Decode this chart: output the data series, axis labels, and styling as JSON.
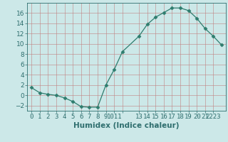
{
  "x": [
    0,
    1,
    2,
    3,
    4,
    5,
    6,
    7,
    8,
    9,
    10,
    11,
    13,
    14,
    15,
    16,
    17,
    18,
    19,
    20,
    21,
    22,
    23
  ],
  "y": [
    1.5,
    0.5,
    0.2,
    0.0,
    -0.5,
    -1.2,
    -2.2,
    -2.3,
    -2.3,
    2.0,
    5.0,
    8.5,
    11.5,
    13.8,
    15.2,
    16.1,
    17.0,
    17.0,
    16.5,
    15.0,
    13.0,
    11.5,
    9.8
  ],
  "line_color": "#2e7d6e",
  "marker": "D",
  "marker_size": 2.5,
  "bg_color": "#cce8e8",
  "grid_color": "#b0c8c8",
  "xlabel": "Humidex (Indice chaleur)",
  "xlim": [
    -0.5,
    23.5
  ],
  "ylim": [
    -3,
    18
  ],
  "yticks": [
    -2,
    0,
    2,
    4,
    6,
    8,
    10,
    12,
    14,
    16
  ],
  "xtick_labels": [
    "0",
    "1",
    "2",
    "3",
    "4",
    "5",
    "6",
    "7",
    "8",
    "9",
    "1011",
    "",
    "13",
    "14",
    "15",
    "16",
    "17",
    "18",
    "19",
    "20",
    "21",
    "2223"
  ],
  "xtick_positions": [
    0,
    1,
    2,
    3,
    4,
    5,
    6,
    7,
    8,
    9,
    10,
    11,
    13,
    14,
    15,
    16,
    17,
    18,
    19,
    20,
    21,
    22
  ],
  "font_color": "#2e6e6e",
  "font_size": 6.5,
  "xlabel_fontsize": 7.5
}
